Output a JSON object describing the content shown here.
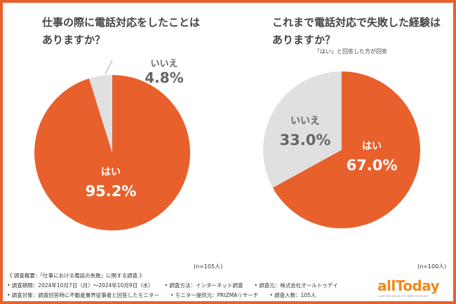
{
  "chart_data": [
    {
      "type": "pie",
      "title": "仕事の際に電話対応をしたことはありますか？",
      "categories": [
        "はい",
        "いいえ"
      ],
      "values": [
        95.2,
        4.8
      ],
      "colors": [
        "#e8602c",
        "#e0e0e0"
      ],
      "labels": [
        "95.2%",
        "4.8%"
      ],
      "note": "(n=105人)"
    },
    {
      "type": "pie",
      "title": "これまで電話対応で失敗した経験はありますか？",
      "subtitle": "「はい」と回答した方が回答",
      "categories": [
        "はい",
        "いいえ"
      ],
      "values": [
        67.0,
        33.0
      ],
      "colors": [
        "#e8602c",
        "#e0e0e0"
      ],
      "labels": [
        "67.0%",
        "33.0%"
      ],
      "note": "(n=100人)"
    }
  ],
  "c1": {
    "t1": "仕事の際に電話対応をしたことは",
    "t2": "ありますか？"
  },
  "c2": {
    "t1": "これまで電話対応で失敗した経験は",
    "t2": "ありますか？"
  },
  "footer": {
    "summary": "《 調査概要：「仕事における電話の失敗」に関する調査 》",
    "period": "• 調査期間：2024年10月7日（月）～2024年10月9日（水）",
    "method": "• 調査方法：インターネット調査",
    "source": "• 調査元：株式会社オールトゥデイ",
    "target": "• 調査対象：調査回答時に不動産業界従事者と回答したモニター",
    "provider": "• モニター提供元：PRIZMAリサーチ",
    "count": "• 調査人数：105人"
  },
  "logo": {
    "text": "allToday",
    "tagline": "LIVE THIS DAY AS IF IT WERE YOUR LAST"
  }
}
